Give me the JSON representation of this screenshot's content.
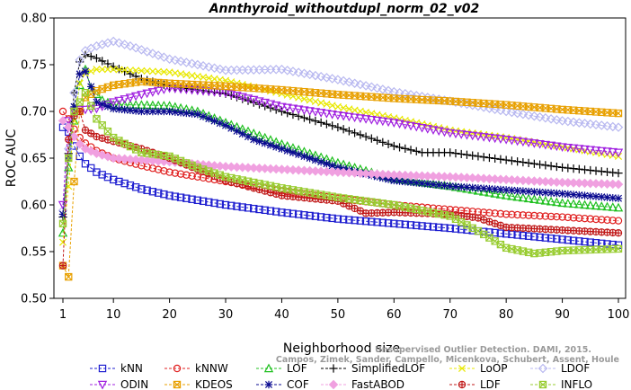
{
  "chart_data": {
    "type": "line",
    "title": "Annthyroid_withoutdupl_norm_02_v02",
    "xlabel": "Neighborhood size",
    "ylabel": "ROC AUC",
    "xlim": [
      1,
      100
    ],
    "ylim": [
      0.5,
      0.8
    ],
    "xticks": [
      1,
      10,
      20,
      30,
      40,
      50,
      60,
      70,
      80,
      90,
      100
    ],
    "yticks": [
      0.5,
      0.55,
      0.6,
      0.65,
      0.7,
      0.75,
      0.8
    ],
    "grid": false,
    "legend_position": "bottom",
    "credit_lines": [
      "Unsupervised Outlier Detection. DAMI, 2015.",
      "Campos, Zimek, Sander, Campello, Micenkova, Schubert, Assent, Houle"
    ],
    "series": [
      {
        "name": "kNN",
        "color": "#1f1fd0",
        "marker": "square",
        "points": [
          [
            1,
            0.683
          ],
          [
            2,
            0.678
          ],
          [
            3,
            0.663
          ],
          [
            4,
            0.652
          ],
          [
            5,
            0.644
          ],
          [
            7,
            0.635
          ],
          [
            10,
            0.627
          ],
          [
            15,
            0.617
          ],
          [
            20,
            0.61
          ],
          [
            30,
            0.6
          ],
          [
            40,
            0.592
          ],
          [
            50,
            0.585
          ],
          [
            60,
            0.58
          ],
          [
            70,
            0.575
          ],
          [
            80,
            0.569
          ],
          [
            90,
            0.563
          ],
          [
            100,
            0.557
          ]
        ]
      },
      {
        "name": "kNNW",
        "color": "#e02020",
        "marker": "circle",
        "points": [
          [
            1,
            0.7
          ],
          [
            2,
            0.692
          ],
          [
            3,
            0.681
          ],
          [
            4,
            0.672
          ],
          [
            5,
            0.666
          ],
          [
            7,
            0.658
          ],
          [
            10,
            0.65
          ],
          [
            15,
            0.642
          ],
          [
            20,
            0.635
          ],
          [
            30,
            0.625
          ],
          [
            40,
            0.615
          ],
          [
            50,
            0.607
          ],
          [
            60,
            0.6
          ],
          [
            70,
            0.595
          ],
          [
            80,
            0.59
          ],
          [
            90,
            0.587
          ],
          [
            100,
            0.583
          ]
        ]
      },
      {
        "name": "LOF",
        "color": "#20c020",
        "marker": "triangle-up",
        "points": [
          [
            1,
            0.57
          ],
          [
            2,
            0.64
          ],
          [
            3,
            0.69
          ],
          [
            4,
            0.728
          ],
          [
            5,
            0.745
          ],
          [
            6,
            0.725
          ],
          [
            8,
            0.712
          ],
          [
            10,
            0.707
          ],
          [
            15,
            0.707
          ],
          [
            20,
            0.706
          ],
          [
            25,
            0.7
          ],
          [
            30,
            0.688
          ],
          [
            40,
            0.665
          ],
          [
            50,
            0.645
          ],
          [
            60,
            0.628
          ],
          [
            70,
            0.62
          ],
          [
            80,
            0.61
          ],
          [
            90,
            0.602
          ],
          [
            100,
            0.597
          ]
        ]
      },
      {
        "name": "SimplifiedLOF",
        "color": "#000000",
        "marker": "plus",
        "points": [
          [
            1,
            0.587
          ],
          [
            2,
            0.655
          ],
          [
            3,
            0.72
          ],
          [
            4,
            0.753
          ],
          [
            5,
            0.761
          ],
          [
            7,
            0.757
          ],
          [
            10,
            0.748
          ],
          [
            15,
            0.735
          ],
          [
            20,
            0.727
          ],
          [
            30,
            0.719
          ],
          [
            40,
            0.7
          ],
          [
            50,
            0.683
          ],
          [
            60,
            0.663
          ],
          [
            65,
            0.656
          ],
          [
            70,
            0.656
          ],
          [
            80,
            0.648
          ],
          [
            90,
            0.64
          ],
          [
            100,
            0.634
          ]
        ]
      },
      {
        "name": "LoOP",
        "color": "#e8e800",
        "marker": "x",
        "points": [
          [
            1,
            0.56
          ],
          [
            2,
            0.62
          ],
          [
            3,
            0.69
          ],
          [
            4,
            0.73
          ],
          [
            5,
            0.741
          ],
          [
            7,
            0.745
          ],
          [
            10,
            0.745
          ],
          [
            20,
            0.742
          ],
          [
            30,
            0.733
          ],
          [
            40,
            0.719
          ],
          [
            50,
            0.705
          ],
          [
            60,
            0.693
          ],
          [
            70,
            0.68
          ],
          [
            80,
            0.672
          ],
          [
            90,
            0.662
          ],
          [
            100,
            0.652
          ]
        ]
      },
      {
        "name": "LDOF",
        "color": "#b8b8f0",
        "marker": "diamond",
        "points": [
          [
            1,
            0.594
          ],
          [
            2,
            0.66
          ],
          [
            3,
            0.72
          ],
          [
            4,
            0.755
          ],
          [
            5,
            0.765
          ],
          [
            7,
            0.77
          ],
          [
            10,
            0.775
          ],
          [
            13,
            0.77
          ],
          [
            20,
            0.756
          ],
          [
            30,
            0.744
          ],
          [
            40,
            0.745
          ],
          [
            50,
            0.734
          ],
          [
            60,
            0.721
          ],
          [
            70,
            0.711
          ],
          [
            80,
            0.7
          ],
          [
            90,
            0.69
          ],
          [
            100,
            0.683
          ]
        ]
      },
      {
        "name": "ODIN",
        "color": "#a020e0",
        "marker": "triangle-down",
        "points": [
          [
            1,
            0.6
          ],
          [
            2,
            0.69
          ],
          [
            3,
            0.7
          ],
          [
            4,
            0.702
          ],
          [
            5,
            0.702
          ],
          [
            7,
            0.703
          ],
          [
            10,
            0.71
          ],
          [
            15,
            0.718
          ],
          [
            20,
            0.725
          ],
          [
            30,
            0.72
          ],
          [
            40,
            0.705
          ],
          [
            50,
            0.696
          ],
          [
            60,
            0.688
          ],
          [
            70,
            0.677
          ],
          [
            80,
            0.67
          ],
          [
            90,
            0.662
          ],
          [
            100,
            0.656
          ]
        ]
      },
      {
        "name": "KDEOS",
        "color": "#e8a000",
        "marker": "square-x",
        "points": [
          [
            1,
            0.535
          ],
          [
            2,
            0.523
          ],
          [
            3,
            0.625
          ],
          [
            4,
            0.7
          ],
          [
            5,
            0.715
          ],
          [
            7,
            0.722
          ],
          [
            10,
            0.728
          ],
          [
            15,
            0.732
          ],
          [
            20,
            0.73
          ],
          [
            30,
            0.727
          ],
          [
            40,
            0.723
          ],
          [
            50,
            0.718
          ],
          [
            60,
            0.714
          ],
          [
            70,
            0.711
          ],
          [
            80,
            0.707
          ],
          [
            90,
            0.702
          ],
          [
            100,
            0.698
          ]
        ]
      },
      {
        "name": "COF",
        "color": "#0a0a90",
        "marker": "star",
        "points": [
          [
            1,
            0.59
          ],
          [
            2,
            0.65
          ],
          [
            3,
            0.705
          ],
          [
            4,
            0.74
          ],
          [
            5,
            0.743
          ],
          [
            7,
            0.71
          ],
          [
            10,
            0.703
          ],
          [
            15,
            0.7
          ],
          [
            20,
            0.7
          ],
          [
            25,
            0.697
          ],
          [
            30,
            0.685
          ],
          [
            35,
            0.67
          ],
          [
            40,
            0.66
          ],
          [
            50,
            0.64
          ],
          [
            60,
            0.626
          ],
          [
            70,
            0.62
          ],
          [
            80,
            0.616
          ],
          [
            90,
            0.612
          ],
          [
            100,
            0.607
          ]
        ]
      },
      {
        "name": "FastABOD",
        "color": "#f0a0e0",
        "marker": "diamond-filled",
        "points": [
          [
            1,
            0.69
          ],
          [
            2,
            0.683
          ],
          [
            3,
            0.673
          ],
          [
            4,
            0.665
          ],
          [
            5,
            0.66
          ],
          [
            7,
            0.655
          ],
          [
            10,
            0.65
          ],
          [
            15,
            0.648
          ],
          [
            20,
            0.646
          ],
          [
            30,
            0.641
          ],
          [
            40,
            0.638
          ],
          [
            50,
            0.635
          ],
          [
            60,
            0.632
          ],
          [
            70,
            0.63
          ],
          [
            80,
            0.627
          ],
          [
            90,
            0.624
          ],
          [
            100,
            0.622
          ]
        ]
      },
      {
        "name": "LDF",
        "color": "#c01818",
        "marker": "circle-plus",
        "points": [
          [
            1,
            0.535
          ],
          [
            2,
            0.67
          ],
          [
            3,
            0.695
          ],
          [
            4,
            0.7
          ],
          [
            5,
            0.68
          ],
          [
            7,
            0.673
          ],
          [
            10,
            0.668
          ],
          [
            15,
            0.66
          ],
          [
            20,
            0.65
          ],
          [
            30,
            0.626
          ],
          [
            40,
            0.61
          ],
          [
            50,
            0.604
          ],
          [
            55,
            0.591
          ],
          [
            60,
            0.592
          ],
          [
            70,
            0.59
          ],
          [
            75,
            0.586
          ],
          [
            80,
            0.576
          ],
          [
            90,
            0.573
          ],
          [
            100,
            0.57
          ]
        ]
      },
      {
        "name": "INFLO",
        "color": "#98cc30",
        "marker": "hourglass",
        "points": [
          [
            1,
            0.58
          ],
          [
            2,
            0.65
          ],
          [
            3,
            0.7
          ],
          [
            4,
            0.71
          ],
          [
            5,
            0.72
          ],
          [
            7,
            0.692
          ],
          [
            10,
            0.672
          ],
          [
            15,
            0.656
          ],
          [
            20,
            0.652
          ],
          [
            25,
            0.64
          ],
          [
            30,
            0.63
          ],
          [
            40,
            0.618
          ],
          [
            50,
            0.608
          ],
          [
            60,
            0.6
          ],
          [
            70,
            0.588
          ],
          [
            75,
            0.572
          ],
          [
            80,
            0.554
          ],
          [
            85,
            0.548
          ],
          [
            90,
            0.551
          ],
          [
            100,
            0.553
          ]
        ]
      }
    ]
  }
}
